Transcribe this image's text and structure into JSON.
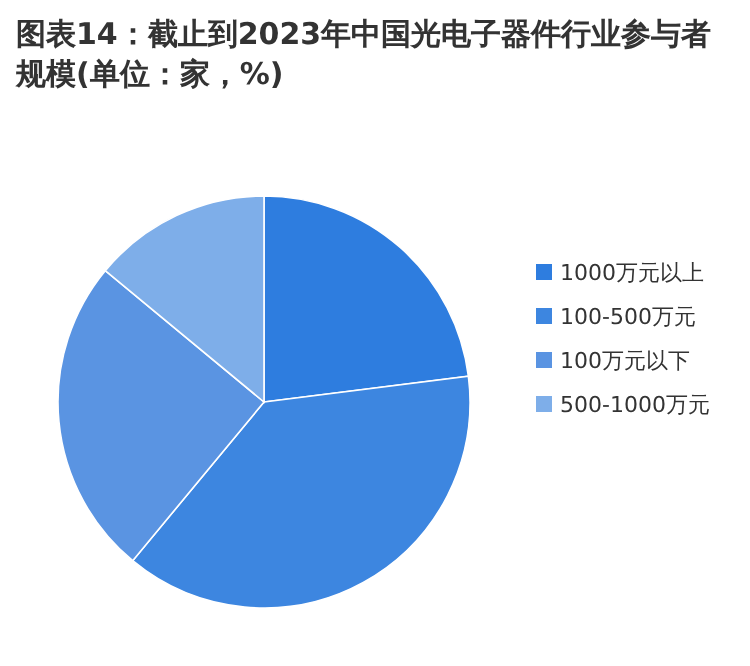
{
  "chart_data": {
    "type": "pie",
    "title": "图表14：截止到2023年中国光电子器件行业参与者规模(单位：家，%)",
    "categories": [
      "1000万元以上",
      "100-500万元",
      "100万元以下",
      "500-1000万元"
    ],
    "values": [
      23,
      38,
      25,
      14
    ],
    "colors": [
      "#2e7ddf",
      "#3d86e0",
      "#5a94e2",
      "#7eaee9"
    ],
    "legend": "right"
  }
}
